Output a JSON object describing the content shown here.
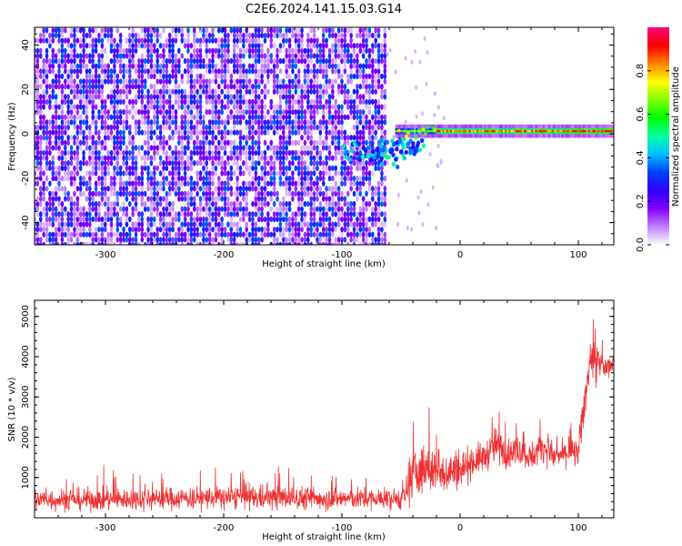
{
  "title": "C2E6.2024.141.15.03.G14",
  "chart_data": [
    {
      "type": "heatmap",
      "xlabel": "Height of straight line (km)",
      "ylabel": "Frequency (Hz)",
      "xlim": [
        -360,
        130
      ],
      "ylim": [
        -50,
        48
      ],
      "xticks": [
        -300,
        -200,
        -100,
        0,
        100
      ],
      "yticks": [
        -40,
        -20,
        0,
        20,
        40
      ],
      "grid": false,
      "colorbar": {
        "label": "Normalized spectral amplitude",
        "range": [
          0,
          1
        ],
        "ticks": [
          0.0,
          0.2,
          0.4,
          0.6,
          0.8
        ],
        "colors": [
          "#ffffff",
          "#c080ff",
          "#8000ff",
          "#3000ff",
          "#0040ff",
          "#00c0ff",
          "#00ffa0",
          "#00ff00",
          "#80ff00",
          "#ffff00",
          "#ff8000",
          "#ff0000",
          "#ff0080"
        ]
      },
      "regions": [
        {
          "description_x_range": [
            -360,
            -62
          ],
          "freq_range": [
            -50,
            48
          ],
          "amplitude": [
            0.0,
            0.3
          ],
          "pattern": "noise"
        },
        {
          "description_x_range": [
            -100,
            -30
          ],
          "freq_range": [
            -20,
            5
          ],
          "amplitude": [
            0.2,
            0.5
          ],
          "pattern": "scattered signal"
        },
        {
          "description_x_range": [
            -30,
            130
          ],
          "freq_range": [
            0,
            3
          ],
          "amplitude": [
            0.5,
            1.0
          ],
          "pattern": "narrow line near 1 Hz"
        }
      ]
    },
    {
      "type": "line",
      "xlabel": "Height of straight line (km)",
      "ylabel": "SNR (10 * v/v)",
      "xlim": [
        -360,
        130
      ],
      "ylim": [
        0,
        5400
      ],
      "xticks": [
        -300,
        -200,
        -100,
        0,
        100
      ],
      "yticks": [
        1000,
        2000,
        3000,
        4000,
        5000
      ],
      "grid": false,
      "series": [
        {
          "color": "#f03030",
          "envelope_x": [
            -360,
            -300,
            -250,
            -200,
            -150,
            -100,
            -60,
            -45,
            -40,
            -30,
            -20,
            -10,
            0,
            10,
            20,
            30,
            40,
            50,
            60,
            70,
            80,
            90,
            100,
            105,
            110,
            115,
            120,
            130
          ],
          "envelope_mean": [
            450,
            450,
            480,
            500,
            500,
            480,
            460,
            500,
            1100,
            1200,
            1200,
            1150,
            1200,
            1400,
            1500,
            1800,
            1600,
            1700,
            1500,
            1800,
            1500,
            1600,
            1600,
            2800,
            4000,
            3800,
            3700,
            3800
          ],
          "envelope_spread": [
            300,
            300,
            300,
            320,
            320,
            300,
            280,
            300,
            700,
            700,
            600,
            600,
            500,
            450,
            400,
            500,
            400,
            400,
            400,
            400,
            350,
            350,
            400,
            600,
            500,
            600,
            500,
            400
          ]
        }
      ]
    }
  ]
}
